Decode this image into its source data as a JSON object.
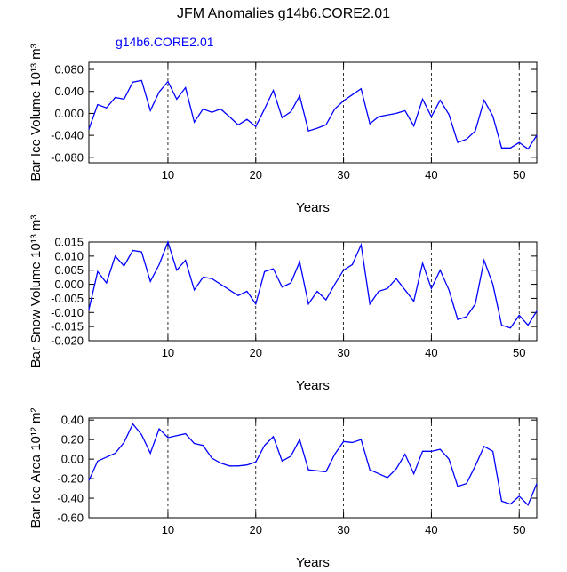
{
  "chart_data": [
    {
      "type": "line",
      "title": "JFM Anomalies g14b6.CORE2.01",
      "subtitle": "g14b6.CORE2.01",
      "x_label": "Years",
      "y_label": "Bar Ice Volume 10¹³ m³",
      "x": [
        1,
        2,
        3,
        4,
        5,
        6,
        7,
        8,
        9,
        10,
        11,
        12,
        13,
        14,
        15,
        16,
        17,
        18,
        19,
        20,
        21,
        22,
        23,
        24,
        25,
        26,
        27,
        28,
        29,
        30,
        31,
        32,
        33,
        34,
        35,
        36,
        37,
        38,
        39,
        40,
        41,
        42,
        43,
        44,
        45,
        46,
        47,
        48,
        49,
        50,
        51,
        52
      ],
      "xlim": [
        1,
        52
      ],
      "xticks": [
        10,
        20,
        30,
        40,
        50
      ],
      "ylim": [
        -0.09,
        0.093
      ],
      "yticks": [
        {
          "value": 0.08,
          "label": "0.080"
        },
        {
          "value": 0.04,
          "label": "0.040"
        },
        {
          "value": 0,
          "label": "0.000"
        },
        {
          "value": -0.04,
          "label": "-0.040"
        },
        {
          "value": -0.08,
          "label": "-0.080"
        }
      ],
      "grid": true,
      "series": [
        {
          "color": "#0000ff",
          "values": [
            -0.029,
            0.016,
            0.01,
            0.029,
            0.026,
            0.057,
            0.06,
            0.005,
            0.039,
            0.058,
            0.026,
            0.047,
            -0.016,
            0.008,
            0.002,
            0.008,
            -0.006,
            -0.021,
            -0.011,
            -0.024,
            0.008,
            0.042,
            -0.008,
            0.003,
            0.032,
            -0.032,
            -0.027,
            -0.021,
            0.008,
            0.023,
            0.034,
            0.045,
            -0.019,
            -0.006,
            -0.003,
            0.0,
            0.005,
            -0.023,
            0.026,
            -0.006,
            0.024,
            -0.002,
            -0.053,
            -0.047,
            -0.032,
            0.024,
            -0.005,
            -0.063,
            -0.063,
            -0.053,
            -0.065,
            -0.04
          ]
        }
      ]
    },
    {
      "type": "line",
      "x_label": "Years",
      "y_label": "Bar Snow Volume 10¹³ m³",
      "x": [
        1,
        2,
        3,
        4,
        5,
        6,
        7,
        8,
        9,
        10,
        11,
        12,
        13,
        14,
        15,
        16,
        17,
        18,
        19,
        20,
        21,
        22,
        23,
        24,
        25,
        26,
        27,
        28,
        29,
        30,
        31,
        32,
        33,
        34,
        35,
        36,
        37,
        38,
        39,
        40,
        41,
        42,
        43,
        44,
        45,
        46,
        47,
        48,
        49,
        50,
        51,
        52
      ],
      "xlim": [
        1,
        52
      ],
      "xticks": [
        10,
        20,
        30,
        40,
        50
      ],
      "ylim": [
        -0.02,
        0.015
      ],
      "yticks": [
        {
          "value": 0.015,
          "label": "0.015"
        },
        {
          "value": 0.01,
          "label": "0.010"
        },
        {
          "value": 0.005,
          "label": "0.005"
        },
        {
          "value": 0,
          "label": "0.000"
        },
        {
          "value": -0.005,
          "label": "-0.005"
        },
        {
          "value": -0.01,
          "label": "-0.010"
        },
        {
          "value": -0.015,
          "label": "-0.015"
        },
        {
          "value": -0.02,
          "label": "-0.020"
        }
      ],
      "grid": true,
      "series": [
        {
          "color": "#0000ff",
          "values": [
            -0.009,
            0.0045,
            0.0005,
            0.01,
            0.0065,
            0.012,
            0.0115,
            0.001,
            0.007,
            0.015,
            0.005,
            0.0085,
            -0.002,
            0.0025,
            0.002,
            0.0,
            -0.002,
            -0.004,
            -0.0025,
            -0.007,
            0.0045,
            0.0055,
            -0.001,
            0.0005,
            0.008,
            -0.007,
            -0.0025,
            -0.0055,
            0.0,
            0.005,
            0.007,
            0.014,
            -0.007,
            -0.0025,
            -0.0015,
            0.002,
            -0.002,
            -0.006,
            0.0075,
            -0.0015,
            0.005,
            -0.002,
            -0.0125,
            -0.0115,
            -0.007,
            0.0085,
            0.0,
            -0.0145,
            -0.0155,
            -0.011,
            -0.0145,
            -0.0095
          ]
        }
      ]
    },
    {
      "type": "line",
      "x_label": "Years",
      "y_label": "Bar Ice Area 10¹² m²",
      "x": [
        1,
        2,
        3,
        4,
        5,
        6,
        7,
        8,
        9,
        10,
        11,
        12,
        13,
        14,
        15,
        16,
        17,
        18,
        19,
        20,
        21,
        22,
        23,
        24,
        25,
        26,
        27,
        28,
        29,
        30,
        31,
        32,
        33,
        34,
        35,
        36,
        37,
        38,
        39,
        40,
        41,
        42,
        43,
        44,
        45,
        46,
        47,
        48,
        49,
        50,
        51,
        52
      ],
      "xlim": [
        1,
        52
      ],
      "xticks": [
        10,
        20,
        30,
        40,
        50
      ],
      "ylim": [
        -0.6,
        0.42
      ],
      "yticks": [
        {
          "value": 0.4,
          "label": "0.40"
        },
        {
          "value": 0.2,
          "label": "0.20"
        },
        {
          "value": 0,
          "label": "0.00"
        },
        {
          "value": -0.2,
          "label": "-0.20"
        },
        {
          "value": -0.4,
          "label": "-0.40"
        },
        {
          "value": -0.6,
          "label": "-0.60"
        }
      ],
      "grid": true,
      "series": [
        {
          "color": "#0000ff",
          "values": [
            -0.22,
            -0.02,
            0.02,
            0.06,
            0.17,
            0.36,
            0.25,
            0.06,
            0.31,
            0.22,
            0.24,
            0.26,
            0.16,
            0.14,
            0.01,
            -0.04,
            -0.07,
            -0.07,
            -0.06,
            -0.03,
            0.14,
            0.23,
            -0.02,
            0.03,
            0.2,
            -0.11,
            -0.12,
            -0.13,
            0.05,
            0.18,
            0.17,
            0.2,
            -0.11,
            -0.15,
            -0.19,
            -0.1,
            0.05,
            -0.15,
            0.08,
            0.08,
            0.1,
            0.0,
            -0.28,
            -0.25,
            -0.07,
            0.13,
            0.08,
            -0.43,
            -0.46,
            -0.38,
            -0.47,
            -0.25
          ]
        }
      ]
    }
  ]
}
